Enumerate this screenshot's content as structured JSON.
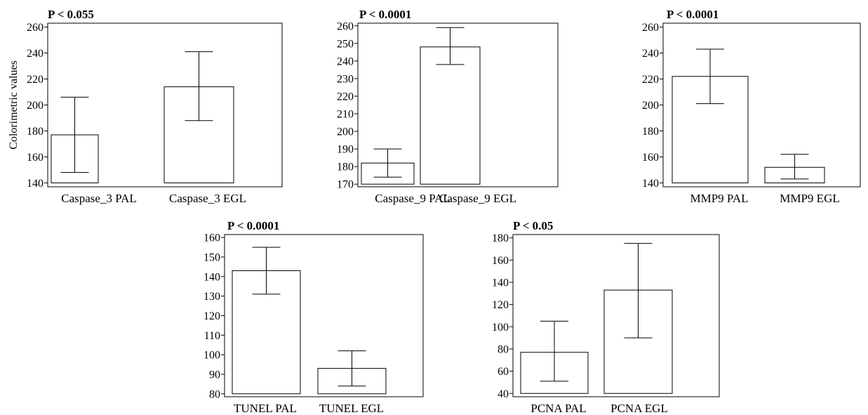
{
  "chart_data": [
    {
      "type": "bar",
      "title": "P < 0.055",
      "ylabel": "Colorimetric values",
      "categories": [
        "Caspase_3 PAL",
        "Caspase_3 EGL"
      ],
      "values": [
        177,
        214
      ],
      "error_low": [
        148,
        188
      ],
      "error_high": [
        206,
        241
      ],
      "yticks": [
        140,
        160,
        180,
        200,
        220,
        240,
        260
      ],
      "ylim": [
        137,
        263
      ]
    },
    {
      "type": "bar",
      "title": "P < 0.0001",
      "ylabel": "",
      "categories": [
        "Caspase_9 PAL",
        "Caspase_9 EGL"
      ],
      "values": [
        182,
        248
      ],
      "error_low": [
        174,
        238
      ],
      "error_high": [
        190,
        259
      ],
      "yticks": [
        170,
        180,
        190,
        200,
        210,
        220,
        230,
        240,
        250,
        260
      ],
      "ylim": [
        168.5,
        261.5
      ]
    },
    {
      "type": "bar",
      "title": "P < 0.0001",
      "ylabel": "",
      "categories": [
        "MMP9 PAL",
        "MMP9 EGL"
      ],
      "values": [
        222,
        152
      ],
      "error_low": [
        201,
        143
      ],
      "error_high": [
        243,
        162
      ],
      "yticks": [
        140,
        160,
        180,
        200,
        220,
        240,
        260
      ],
      "ylim": [
        137,
        263
      ]
    },
    {
      "type": "bar",
      "title": "P < 0.0001",
      "ylabel": "",
      "categories": [
        "TUNEL PAL",
        "TUNEL EGL"
      ],
      "values": [
        143,
        93
      ],
      "error_low": [
        131,
        84
      ],
      "error_high": [
        155,
        102
      ],
      "yticks": [
        80,
        90,
        100,
        110,
        120,
        130,
        140,
        150,
        160
      ],
      "ylim": [
        78.5,
        161.5
      ]
    },
    {
      "type": "bar",
      "title": "P < 0.05",
      "ylabel": "",
      "categories": [
        "PCNA PAL",
        "PCNA EGL"
      ],
      "values": [
        77,
        133
      ],
      "error_low": [
        51,
        90
      ],
      "error_high": [
        105,
        175
      ],
      "yticks": [
        40,
        60,
        80,
        100,
        120,
        140,
        160,
        180
      ],
      "ylim": [
        37,
        183
      ]
    }
  ]
}
